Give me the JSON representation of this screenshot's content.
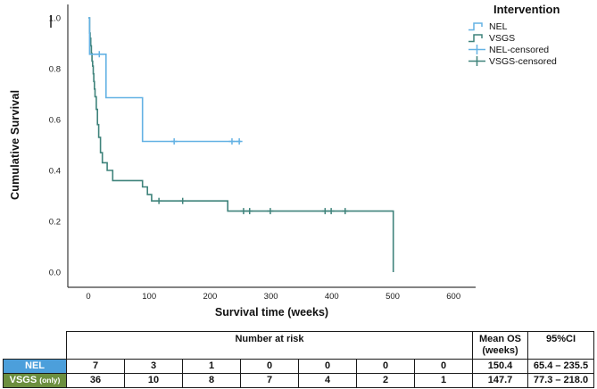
{
  "figure": {
    "y_axis_title": "Cumulative Survival",
    "x_axis_title": "Survival time (weeks)"
  },
  "legend": {
    "title": "Intervention",
    "items": [
      {
        "label": "NEL",
        "symbol": "step-line",
        "color": "#64B2E4"
      },
      {
        "label": "VSGS",
        "symbol": "step-line",
        "color": "#3F837B"
      },
      {
        "label": "NEL-censored",
        "symbol": "plus",
        "color": "#64B2E4"
      },
      {
        "label": "VSGS-censored",
        "symbol": "plus",
        "color": "#3F837B"
      }
    ]
  },
  "chart_data": {
    "type": "line",
    "subtype": "kaplan_meier_step",
    "title": "",
    "xlabel": "Survival time (weeks)",
    "ylabel": "Cumulative Survival",
    "xlim": [
      0,
      635
    ],
    "ylim": [
      0.0,
      1.0
    ],
    "grid": false,
    "legend_position": "top-right",
    "xticks": [
      0,
      100,
      200,
      300,
      400,
      500,
      600
    ],
    "xticklabels": [
      "0",
      "100",
      "200",
      "300",
      "400",
      "500",
      "600"
    ],
    "yticks": [
      0.0,
      0.2,
      0.4,
      0.6,
      0.8,
      1.0
    ],
    "yticklabels": [
      "0.0",
      "0.2",
      "0.4",
      "0.6",
      "0.8",
      "1.0"
    ],
    "series": [
      {
        "name": "VSGS",
        "color": "#3F837B",
        "points": [
          [
            0,
            1.0
          ],
          [
            2,
            0.94
          ],
          [
            3,
            0.92
          ],
          [
            4,
            0.89
          ],
          [
            5,
            0.86
          ],
          [
            6,
            0.83
          ],
          [
            7,
            0.81
          ],
          [
            8,
            0.78
          ],
          [
            9,
            0.75
          ],
          [
            10,
            0.72
          ],
          [
            11,
            0.69
          ],
          [
            13,
            0.64
          ],
          [
            15,
            0.58
          ],
          [
            17,
            0.53
          ],
          [
            20,
            0.47
          ],
          [
            23,
            0.43
          ],
          [
            31,
            0.4
          ],
          [
            40,
            0.36
          ],
          [
            89,
            0.335
          ],
          [
            97,
            0.305
          ],
          [
            104,
            0.28
          ],
          [
            229,
            0.24
          ],
          [
            501,
            0.0
          ]
        ],
        "censored": [
          [
            116,
            0.28
          ],
          [
            155,
            0.28
          ],
          [
            255,
            0.24
          ],
          [
            265,
            0.24
          ],
          [
            299,
            0.24
          ],
          [
            389,
            0.24
          ],
          [
            399,
            0.24
          ],
          [
            422,
            0.24
          ]
        ]
      },
      {
        "name": "NEL",
        "color": "#64B2E4",
        "points": [
          [
            0,
            1.0
          ],
          [
            2,
            0.857
          ],
          [
            29,
            0.686
          ],
          [
            89,
            0.514
          ],
          [
            251,
            0.514
          ]
        ],
        "censored": [
          [
            18,
            0.857
          ],
          [
            141,
            0.514
          ],
          [
            236,
            0.514
          ],
          [
            248,
            0.514
          ]
        ]
      }
    ]
  },
  "risk_table": {
    "header": {
      "number_at_risk": "Number at risk",
      "mean_os_line1": "Mean OS",
      "mean_os_line2": "(weeks)",
      "ci": "95%CI"
    },
    "rows": [
      {
        "label": "NEL",
        "label_suffix": "",
        "label_bg": "#4C9FDB",
        "counts": [
          "7",
          "3",
          "1",
          "0",
          "0",
          "0",
          "0"
        ],
        "mean_os": "150.4",
        "ci": "65.4 – 235.5"
      },
      {
        "label": "VSGS",
        "label_suffix": "(only)",
        "label_bg": "#6C8F3F",
        "counts": [
          "36",
          "10",
          "8",
          "7",
          "4",
          "2",
          "1"
        ],
        "mean_os": "147.7",
        "ci": "77.3 – 218.0"
      }
    ]
  }
}
